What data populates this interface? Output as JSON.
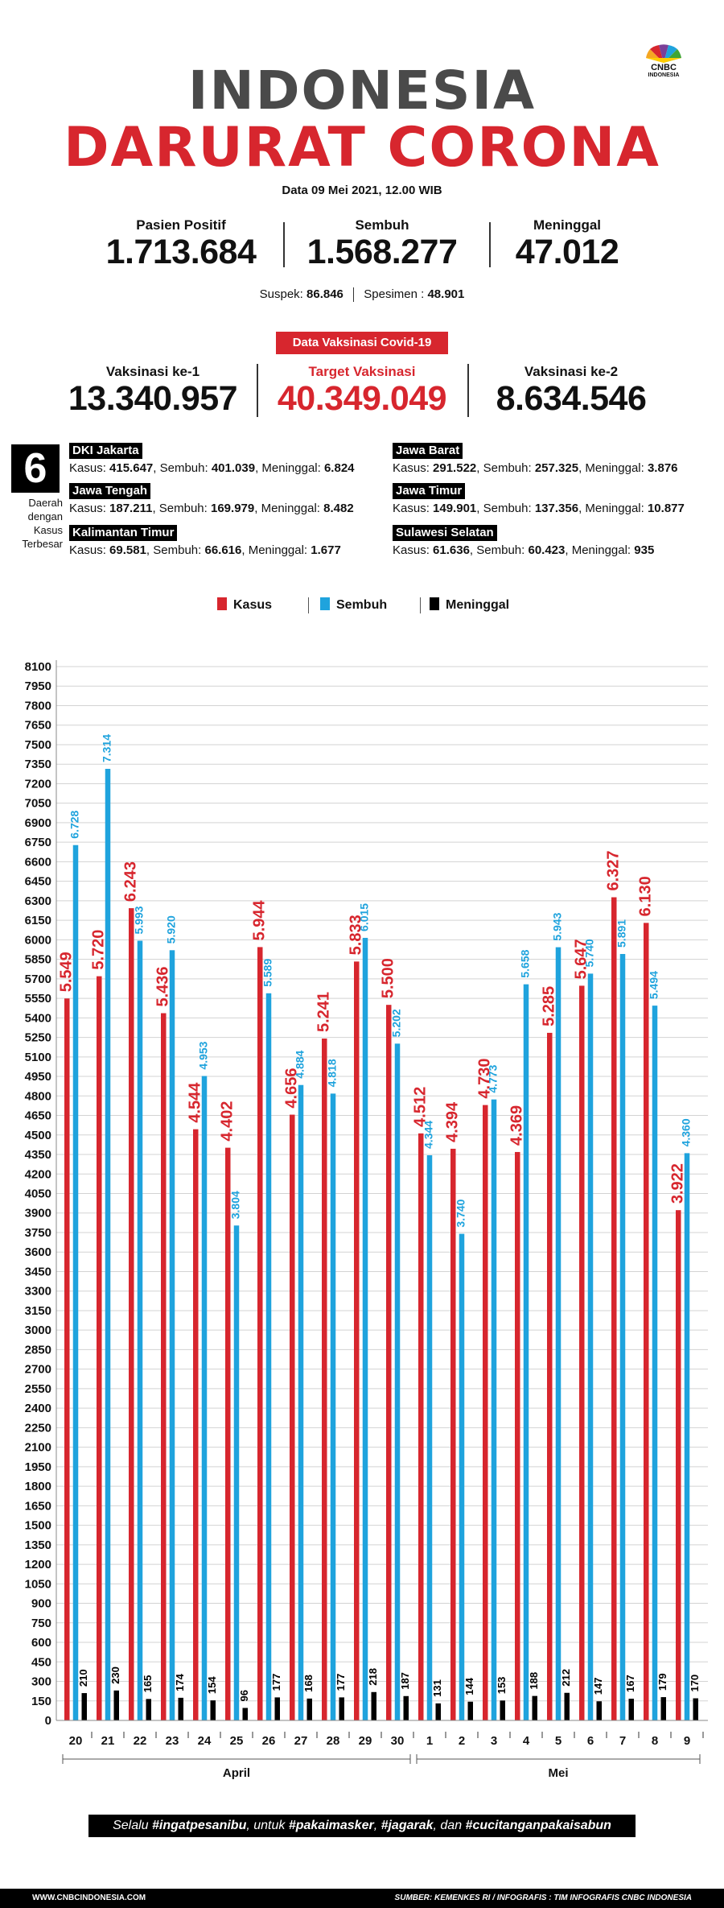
{
  "header": {
    "logo_line1": "CNBC",
    "logo_line2": "INDONESIA",
    "title_line1": "INDONESIA",
    "title_line2": "DARURAT CORONA",
    "date": "Data 09 Mei 2021, 12.00 WIB"
  },
  "stats": {
    "positif": {
      "label": "Pasien Positif",
      "value": "1.713.684"
    },
    "sembuh": {
      "label": "Sembuh",
      "value": "1.568.277"
    },
    "meninggal": {
      "label": "Meninggal",
      "value": "47.012"
    },
    "suspek_label": "Suspek:",
    "suspek_value": "86.846",
    "spesimen_label": "Spesimen :",
    "spesimen_value": "48.901"
  },
  "vaksin": {
    "badge": "Data Vaksinasi Covid-19",
    "ke1": {
      "label": "Vaksinasi ke-1",
      "value": "13.340.957"
    },
    "target": {
      "label": "Target Vaksinasi",
      "value": "40.349.049"
    },
    "ke2": {
      "label": "Vaksinasi ke-2",
      "value": "8.634.546"
    }
  },
  "regions": {
    "count": "6",
    "caption": [
      "Daerah",
      "dengan",
      "Kasus",
      "Terbesar"
    ],
    "items": [
      {
        "name": "DKI Jakarta",
        "kasus": "415.647",
        "sembuh": "401.039",
        "meninggal": "6.824"
      },
      {
        "name": "Jawa Barat",
        "kasus": "291.522",
        "sembuh": "257.325",
        "meninggal": "3.876"
      },
      {
        "name": "Jawa Tengah",
        "kasus": "187.211",
        "sembuh": "169.979",
        "meninggal": "8.482"
      },
      {
        "name": "Jawa Timur",
        "kasus": "149.901",
        "sembuh": "137.356",
        "meninggal": "10.877"
      },
      {
        "name": "Kalimantan Timur",
        "kasus": "69.581",
        "sembuh": "66.616",
        "meninggal": "1.677"
      },
      {
        "name": "Sulawesi Selatan",
        "kasus": "61.636",
        "sembuh": "60.423",
        "meninggal": "935"
      }
    ],
    "labels": {
      "kasus": "Kasus:",
      "sembuh": "Sembuh:",
      "meninggal": "Meninggal:"
    }
  },
  "colors": {
    "kasus": "#d7262e",
    "sembuh": "#1fa3dd",
    "meninggal": "#000000",
    "title_dark": "#4a4a4a"
  },
  "chart_data": {
    "type": "bar",
    "categories": [
      "20",
      "21",
      "22",
      "23",
      "24",
      "25",
      "26",
      "27",
      "28",
      "29",
      "30",
      "1",
      "2",
      "3",
      "4",
      "5",
      "6",
      "7",
      "8",
      "9"
    ],
    "months": [
      {
        "label": "April",
        "from": 0,
        "to": 10
      },
      {
        "label": "Mei",
        "from": 11,
        "to": 19
      }
    ],
    "series": [
      {
        "name": "Kasus",
        "color": "#d7262e",
        "values": [
          5549,
          5720,
          6243,
          5436,
          4544,
          4402,
          5944,
          4656,
          5241,
          5833,
          5500,
          4512,
          4394,
          4730,
          4369,
          5285,
          5647,
          6327,
          6130,
          3922
        ],
        "labels": [
          "5.549",
          "5.720",
          "6.243",
          "5.436",
          "4.544",
          "4.402",
          "5.944",
          "4.656",
          "5.241",
          "5.833",
          "5.500",
          "4.512",
          "4.394",
          "4.730",
          "4.369",
          "5.285",
          "5.647",
          "6.327",
          "6.130",
          "3.922"
        ]
      },
      {
        "name": "Sembuh",
        "color": "#1fa3dd",
        "values": [
          6728,
          7314,
          5993,
          5920,
          4953,
          3804,
          5589,
          4884,
          4818,
          6015,
          5202,
          4344,
          3740,
          4773,
          5658,
          5943,
          5740,
          5891,
          5494,
          4360
        ],
        "labels": [
          "6.728",
          "7.314",
          "5.993",
          "5.920",
          "4.953",
          "3.804",
          "5.589",
          "4.884",
          "4.818",
          "6.015",
          "5.202",
          "4.344",
          "3.740",
          "4.773",
          "5.658",
          "5.943",
          "5.740",
          "5.891",
          "5.494",
          "4.360"
        ]
      },
      {
        "name": "Meninggal",
        "color": "#000000",
        "values": [
          210,
          230,
          165,
          174,
          154,
          96,
          177,
          168,
          177,
          218,
          187,
          131,
          144,
          153,
          188,
          212,
          147,
          167,
          179,
          170
        ],
        "labels": [
          "210",
          "230",
          "165",
          "174",
          "154",
          "96",
          "177",
          "168",
          "177",
          "218",
          "187",
          "131",
          "144",
          "153",
          "188",
          "212",
          "147",
          "167",
          "179",
          "170"
        ]
      }
    ],
    "ylim": [
      0,
      8100
    ],
    "yticks": [
      0,
      150,
      300,
      450,
      600,
      750,
      900,
      1050,
      1200,
      1350,
      1500,
      1650,
      1800,
      1950,
      2100,
      2250,
      2400,
      2550,
      2700,
      2850,
      3000,
      3150,
      3300,
      3450,
      3600,
      3750,
      3900,
      4050,
      4200,
      4350,
      4500,
      4650,
      4800,
      4950,
      5100,
      5250,
      5400,
      5550,
      5700,
      5850,
      6000,
      6150,
      6300,
      6450,
      6600,
      6750,
      6900,
      7050,
      7200,
      7350,
      7500,
      7650,
      7800,
      7950,
      8100
    ],
    "grid": true,
    "legend": "top-center"
  },
  "footer": {
    "slogan_pre": "Selalu ",
    "slogan_1": "#ingatpesanibu",
    "slogan_mid1": ", untuk ",
    "slogan_2": "#pakaimasker",
    "slogan_mid2": ", ",
    "slogan_3": "#jagarak",
    "slogan_mid3": ", dan ",
    "slogan_4": "#cucitanganpakaisabun",
    "website": "WWW.CNBCINDONESIA.COM",
    "source": "SUMBER: KEMENKES RI / INFOGRAFIS : TIM INFOGRAFIS CNBC INDONESIA"
  }
}
